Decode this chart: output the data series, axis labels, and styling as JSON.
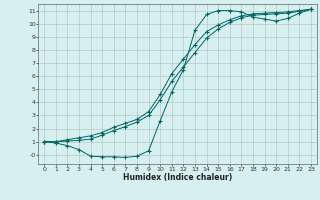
{
  "xlabel": "Humidex (Indice chaleur)",
  "bg_color": "#d6efef",
  "grid_color": "#b8c8c8",
  "line_color": "#006666",
  "xlim": [
    -0.5,
    23.5
  ],
  "ylim": [
    -0.7,
    11.5
  ],
  "yticks": [
    0,
    1,
    2,
    3,
    4,
    5,
    6,
    7,
    8,
    9,
    10,
    11
  ],
  "ytick_labels": [
    "-0",
    "1",
    "2",
    "3",
    "4",
    "5",
    "6",
    "7",
    "8",
    "9",
    "10",
    "11"
  ],
  "xticks": [
    0,
    1,
    2,
    3,
    4,
    5,
    6,
    7,
    8,
    9,
    10,
    11,
    12,
    13,
    14,
    15,
    16,
    17,
    18,
    19,
    20,
    21,
    22,
    23
  ],
  "line1_x": [
    0,
    1,
    2,
    3,
    4,
    5,
    6,
    7,
    8,
    9,
    10,
    11,
    12,
    13,
    14,
    15,
    16,
    17,
    18,
    19,
    20,
    21,
    22,
    23
  ],
  "line1_y": [
    1.0,
    0.9,
    0.7,
    0.4,
    -0.1,
    -0.15,
    -0.15,
    -0.2,
    -0.1,
    0.3,
    2.6,
    4.8,
    6.5,
    9.5,
    10.7,
    11.0,
    11.0,
    10.9,
    10.5,
    10.35,
    10.2,
    10.4,
    10.8,
    11.1
  ],
  "line2_x": [
    0,
    1,
    2,
    3,
    4,
    5,
    6,
    7,
    8,
    9,
    10,
    11,
    12,
    13,
    14,
    15,
    16,
    17,
    18,
    19,
    20,
    21,
    22,
    23
  ],
  "line2_y": [
    1.0,
    1.0,
    1.15,
    1.3,
    1.45,
    1.7,
    2.1,
    2.4,
    2.7,
    3.3,
    4.6,
    6.2,
    7.3,
    8.4,
    9.4,
    9.9,
    10.3,
    10.6,
    10.75,
    10.8,
    10.85,
    10.9,
    11.0,
    11.1
  ],
  "line3_x": [
    0,
    1,
    2,
    3,
    4,
    5,
    6,
    7,
    8,
    9,
    10,
    11,
    12,
    13,
    14,
    15,
    16,
    17,
    18,
    19,
    20,
    21,
    22,
    23
  ],
  "line3_y": [
    1.0,
    1.0,
    1.05,
    1.1,
    1.2,
    1.5,
    1.85,
    2.15,
    2.5,
    3.0,
    4.2,
    5.6,
    6.7,
    7.8,
    8.9,
    9.6,
    10.1,
    10.45,
    10.65,
    10.7,
    10.75,
    10.8,
    10.95,
    11.1
  ]
}
